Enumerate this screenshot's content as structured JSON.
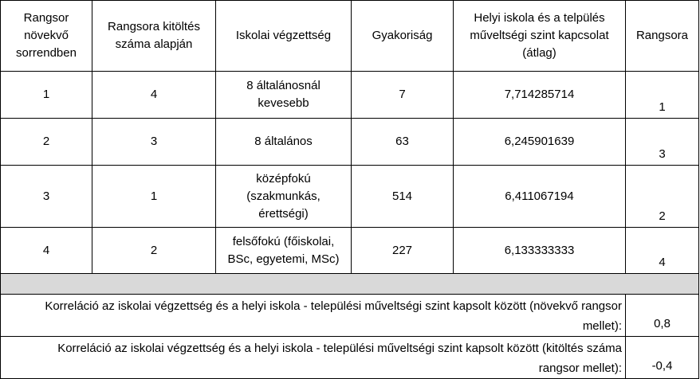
{
  "table": {
    "header": [
      "Rangsor növekvő sorrendben",
      "Rangsora kitöltés száma alapján",
      "Iskolai végzettség",
      "Gyakoriság",
      "Helyi iskola és a telpülés műveltségi szint kapcsolat (átlag)",
      "Rangsora"
    ],
    "rows": [
      [
        "1",
        "4",
        "8 általánosnál kevesebb",
        "7",
        "7,714285714",
        "1"
      ],
      [
        "2",
        "3",
        "8 általános",
        "63",
        "6,245901639",
        "3"
      ],
      [
        "3",
        "1",
        "középfokú (szakmunkás, érettségi)",
        "514",
        "6,411067194",
        "2"
      ],
      [
        "4",
        "2",
        "felsőfokú (főiskolai, BSc, egyetemi, MSc)",
        "227",
        "6,133333333",
        "4"
      ]
    ],
    "correlations": [
      {
        "label": "Korreláció az iskolai végzettség és a helyi iskola - települési műveltségi szint kapsolt között (növekvő rangsor mellet):",
        "value": "0,8"
      },
      {
        "label": "Korreláció az iskolai végzettség és a helyi iskola - települési műveltségi szint kapsolt között (kitöltés száma rangsor mellet):",
        "value": "-0,4"
      }
    ]
  }
}
